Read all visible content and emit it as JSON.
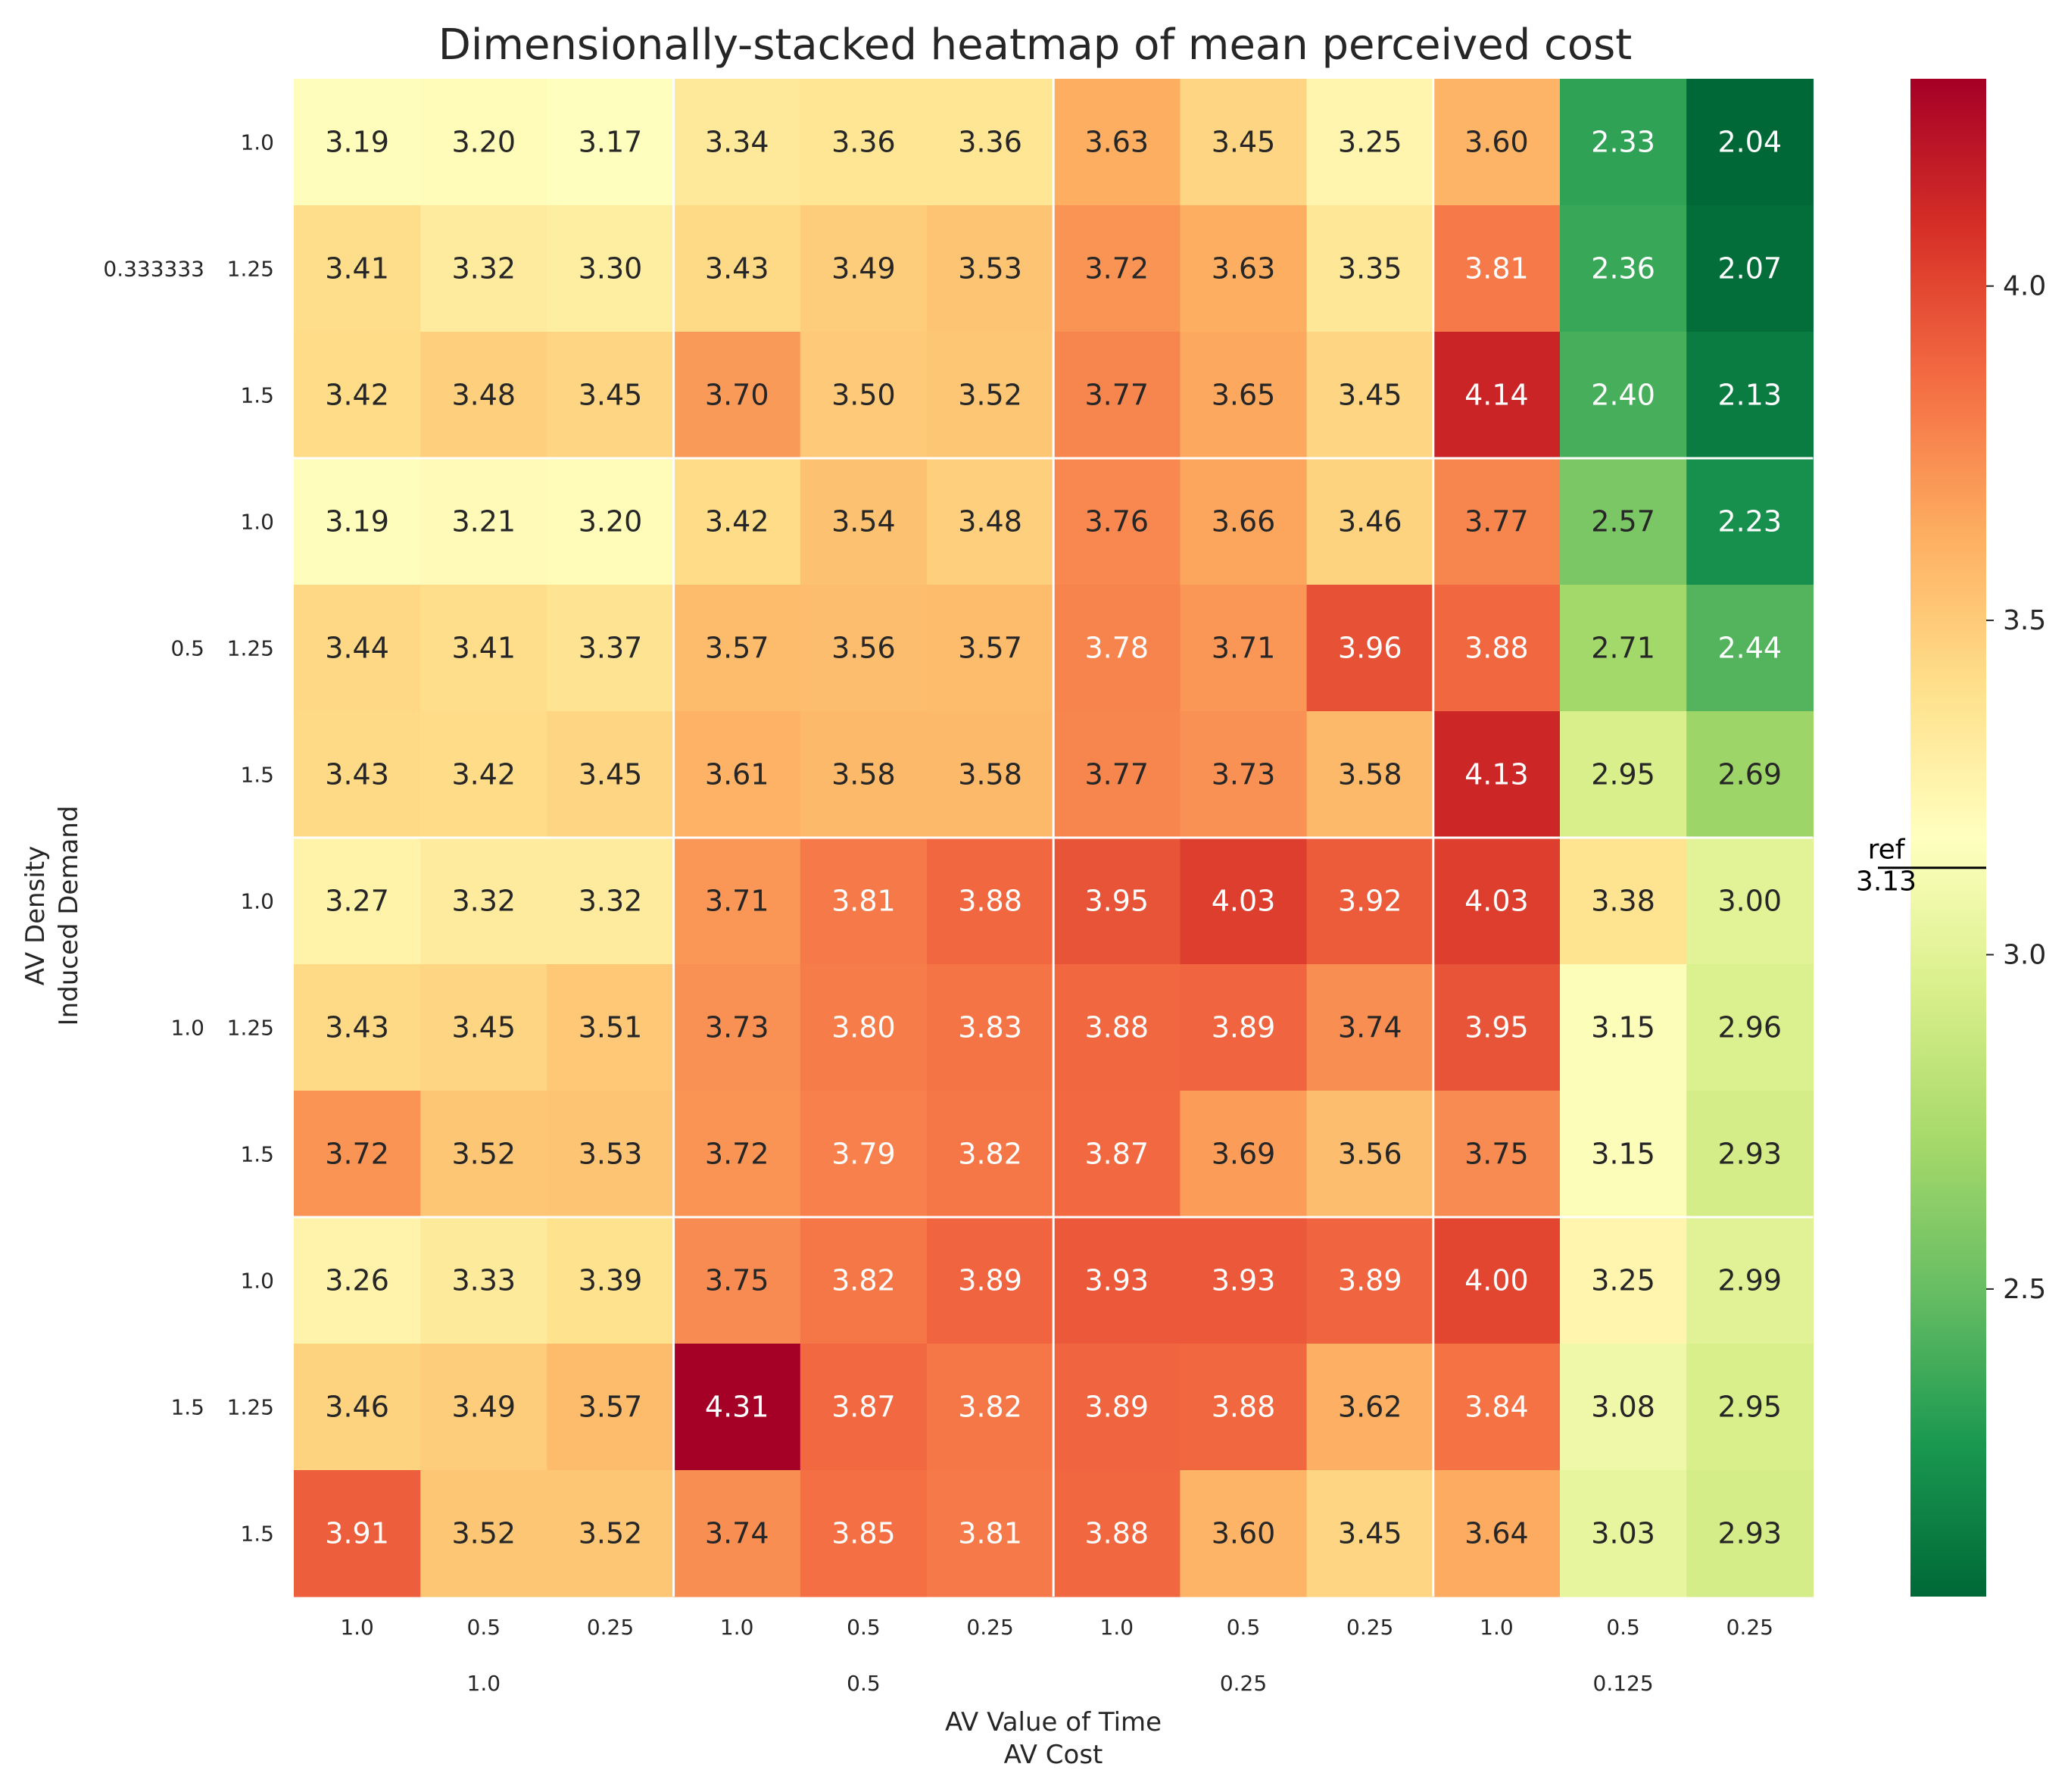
{
  "chart_data": {
    "type": "heatmap",
    "title": "Dimensionally-stacked heatmap of mean perceived cost",
    "xlabel_inner": "AV Value of Time",
    "xlabel_outer": "AV Cost",
    "ylabel_outer": "AV Density",
    "ylabel_inner": "Induced Demand",
    "x_outer": [
      "1.0",
      "0.5",
      "0.25",
      "0.125"
    ],
    "x_inner": [
      "1.0",
      "0.5",
      "0.25"
    ],
    "x_inner_last": [
      "1.0",
      "0.5",
      "0.25"
    ],
    "y_outer": [
      "0.333333",
      "0.5",
      "1.0",
      "1.5"
    ],
    "y_inner": [
      "1.0",
      "1.25",
      "1.5"
    ],
    "values": [
      [
        3.19,
        3.2,
        3.17,
        3.34,
        3.36,
        3.36,
        3.63,
        3.45,
        3.25,
        3.6,
        2.33,
        2.04
      ],
      [
        3.41,
        3.32,
        3.3,
        3.43,
        3.49,
        3.53,
        3.72,
        3.63,
        3.35,
        3.81,
        2.36,
        2.07
      ],
      [
        3.42,
        3.48,
        3.45,
        3.7,
        3.5,
        3.52,
        3.77,
        3.65,
        3.45,
        4.14,
        2.4,
        2.13
      ],
      [
        3.19,
        3.21,
        3.2,
        3.42,
        3.54,
        3.48,
        3.76,
        3.66,
        3.46,
        3.77,
        2.57,
        2.23
      ],
      [
        3.44,
        3.41,
        3.37,
        3.57,
        3.56,
        3.57,
        3.78,
        3.71,
        3.96,
        3.88,
        2.71,
        2.44
      ],
      [
        3.43,
        3.42,
        3.45,
        3.61,
        3.58,
        3.58,
        3.77,
        3.73,
        3.58,
        4.13,
        2.95,
        2.69
      ],
      [
        3.27,
        3.32,
        3.32,
        3.71,
        3.81,
        3.88,
        3.95,
        4.03,
        3.92,
        4.03,
        3.38,
        3.0
      ],
      [
        3.43,
        3.45,
        3.51,
        3.73,
        3.8,
        3.83,
        3.88,
        3.89,
        3.74,
        3.95,
        3.15,
        2.96
      ],
      [
        3.72,
        3.52,
        3.53,
        3.72,
        3.79,
        3.82,
        3.87,
        3.69,
        3.56,
        3.75,
        3.15,
        2.93
      ],
      [
        3.26,
        3.33,
        3.39,
        3.75,
        3.82,
        3.89,
        3.93,
        3.93,
        3.89,
        4.0,
        3.25,
        2.99
      ],
      [
        3.46,
        3.49,
        3.57,
        4.31,
        3.87,
        3.82,
        3.89,
        3.88,
        3.62,
        3.84,
        3.08,
        2.95
      ],
      [
        3.91,
        3.52,
        3.52,
        3.74,
        3.85,
        3.81,
        3.88,
        3.6,
        3.45,
        3.64,
        3.03,
        2.93
      ]
    ],
    "colormap": "RdYlGn_r",
    "vmin": 2.04,
    "vmax": 4.31,
    "colorbar_ticks": [
      "2.5",
      "3.0",
      "3.5",
      "4.0"
    ],
    "colorbar_tick_values": [
      2.5,
      3.0,
      3.5,
      4.0
    ],
    "reference": {
      "label": "ref",
      "value": 3.13,
      "value_label": "3.13"
    }
  }
}
